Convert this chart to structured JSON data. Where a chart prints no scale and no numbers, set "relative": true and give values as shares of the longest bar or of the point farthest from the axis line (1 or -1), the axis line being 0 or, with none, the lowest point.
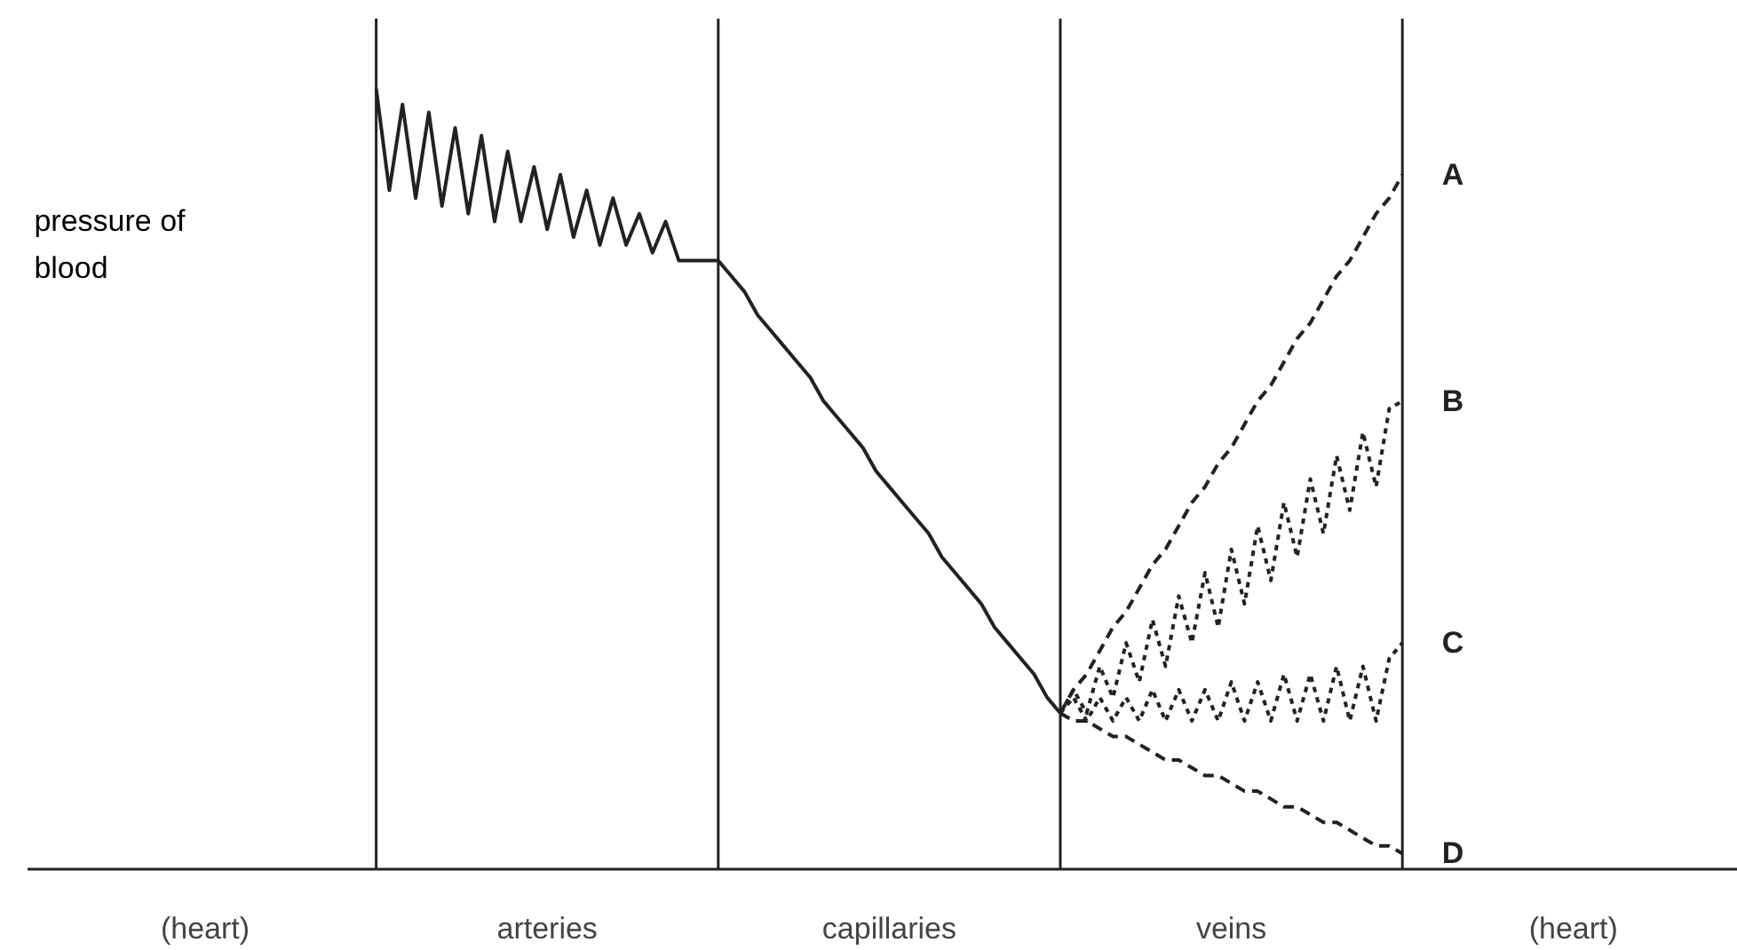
{
  "chart_data": {
    "type": "line",
    "relative": true,
    "ylabel": "pressure of blood",
    "categories": [
      null,
      null,
      null,
      null,
      null,
      null,
      null,
      null,
      null,
      null,
      null,
      null,
      null,
      "(heart)",
      null,
      null,
      null,
      null,
      null,
      null,
      null,
      null,
      null,
      null,
      null,
      null,
      null,
      null,
      null,
      null,
      null,
      null,
      null,
      null,
      null,
      null,
      null,
      null,
      null,
      "arteries",
      null,
      null,
      null,
      null,
      null,
      null,
      null,
      null,
      null,
      null,
      null,
      null,
      null,
      null,
      null,
      null,
      null,
      null,
      null,
      null,
      null,
      null,
      null,
      null,
      null,
      "capillaries",
      null,
      null,
      null,
      null,
      null,
      null,
      null,
      null,
      null,
      null,
      null,
      null,
      null,
      null,
      null,
      null,
      null,
      null,
      null,
      null,
      null,
      null,
      null,
      null,
      null,
      "veins",
      null,
      null,
      null,
      null,
      null,
      null,
      null,
      null,
      null,
      null,
      null,
      null,
      null,
      null,
      null,
      null,
      null,
      null,
      null,
      null,
      null,
      null,
      null,
      null,
      null,
      "(heart)",
      null,
      null,
      null,
      null,
      null,
      null,
      null,
      null,
      null,
      null,
      null,
      null
    ],
    "grid": "x",
    "marker": "none",
    "series": [
      {
        "color": "#222222",
        "line_style": "solid",
        "values": [
          null,
          null,
          null,
          null,
          null,
          null,
          null,
          null,
          null,
          null,
          null,
          null,
          null,
          null,
          null,
          null,
          null,
          null,
          null,
          null,
          null,
          null,
          null,
          null,
          null,
          null,
          1.0,
          0.87,
          0.98,
          0.86,
          0.97,
          0.85,
          0.95,
          0.84,
          0.94,
          0.83,
          0.92,
          0.83,
          0.9,
          0.82,
          0.89,
          0.81,
          0.87,
          0.8,
          0.86,
          0.8,
          0.84,
          0.79,
          0.83,
          0.78,
          0.78,
          0.78,
          0.78,
          null,
          null,
          null,
          null,
          null,
          null,
          null,
          null,
          null,
          null,
          null,
          null,
          null,
          null,
          null,
          null,
          null,
          null,
          null,
          null,
          null,
          null,
          null,
          null,
          null,
          null,
          null,
          null,
          null,
          null,
          null,
          null,
          null,
          null,
          null,
          null,
          null,
          null,
          null,
          null,
          null,
          null,
          null,
          null,
          null,
          null,
          null,
          null,
          null,
          null,
          null,
          null,
          null,
          null,
          null,
          null,
          null,
          null,
          null,
          null,
          null,
          null,
          null,
          null,
          null,
          null,
          null,
          null,
          null,
          null,
          null,
          null,
          null,
          null,
          null,
          null,
          null
        ]
      },
      {
        "color": "#222222",
        "line_style": "solid",
        "values": [
          null,
          null,
          null,
          null,
          null,
          null,
          null,
          null,
          null,
          null,
          null,
          null,
          null,
          null,
          null,
          null,
          null,
          null,
          null,
          null,
          null,
          null,
          null,
          null,
          null,
          null,
          null,
          null,
          null,
          null,
          null,
          null,
          null,
          null,
          null,
          null,
          null,
          null,
          null,
          null,
          null,
          null,
          null,
          null,
          null,
          null,
          null,
          null,
          null,
          null,
          null,
          null,
          0.78,
          0.76,
          0.74,
          0.71,
          0.69,
          0.67,
          0.65,
          0.63,
          0.6,
          0.58,
          0.56,
          0.54,
          0.51,
          0.49,
          0.47,
          0.45,
          0.43,
          0.4,
          0.38,
          0.36,
          0.34,
          0.31,
          0.29,
          0.27,
          0.25,
          0.22,
          0.2,
          null,
          null,
          null,
          null,
          null,
          null,
          null,
          null,
          null,
          null,
          null,
          null,
          null,
          null,
          null,
          null,
          null,
          null,
          null,
          null,
          null,
          null,
          null,
          null,
          null,
          null,
          null,
          null,
          null,
          null,
          null,
          null,
          null,
          null,
          null,
          null,
          null,
          null,
          null,
          null,
          null,
          null,
          null,
          null,
          null,
          null,
          null,
          null,
          null,
          null,
          null
        ]
      },
      {
        "name": "A",
        "color": "#222222",
        "line_style": "dashed",
        "values": [
          null,
          null,
          null,
          null,
          null,
          null,
          null,
          null,
          null,
          null,
          null,
          null,
          null,
          null,
          null,
          null,
          null,
          null,
          null,
          null,
          null,
          null,
          null,
          null,
          null,
          null,
          null,
          null,
          null,
          null,
          null,
          null,
          null,
          null,
          null,
          null,
          null,
          null,
          null,
          null,
          null,
          null,
          null,
          null,
          null,
          null,
          null,
          null,
          null,
          null,
          null,
          null,
          null,
          null,
          null,
          null,
          null,
          null,
          null,
          null,
          null,
          null,
          null,
          null,
          null,
          null,
          null,
          null,
          null,
          null,
          null,
          null,
          null,
          null,
          null,
          null,
          null,
          null,
          0.2,
          0.23,
          0.25,
          0.28,
          0.31,
          0.33,
          0.36,
          0.39,
          0.41,
          0.44,
          0.47,
          0.49,
          0.52,
          0.54,
          0.57,
          0.6,
          0.62,
          0.65,
          0.68,
          0.7,
          0.73,
          0.76,
          0.78,
          0.81,
          0.84,
          0.86,
          0.89,
          null,
          null,
          null,
          null,
          null,
          null,
          null,
          null,
          null,
          null,
          null,
          null,
          null,
          null,
          null,
          null,
          null,
          null,
          null,
          null,
          null,
          null,
          null,
          null,
          null
        ]
      },
      {
        "name": "B",
        "color": "#222222",
        "line_style": "dotted",
        "values": [
          null,
          null,
          null,
          null,
          null,
          null,
          null,
          null,
          null,
          null,
          null,
          null,
          null,
          null,
          null,
          null,
          null,
          null,
          null,
          null,
          null,
          null,
          null,
          null,
          null,
          null,
          null,
          null,
          null,
          null,
          null,
          null,
          null,
          null,
          null,
          null,
          null,
          null,
          null,
          null,
          null,
          null,
          null,
          null,
          null,
          null,
          null,
          null,
          null,
          null,
          null,
          null,
          null,
          null,
          null,
          null,
          null,
          null,
          null,
          null,
          null,
          null,
          null,
          null,
          null,
          null,
          null,
          null,
          null,
          null,
          null,
          null,
          null,
          null,
          null,
          null,
          null,
          null,
          0.2,
          0.23,
          0.2,
          0.26,
          0.22,
          0.29,
          0.24,
          0.32,
          0.26,
          0.35,
          0.29,
          0.38,
          0.31,
          0.41,
          0.34,
          0.44,
          0.37,
          0.47,
          0.4,
          0.5,
          0.43,
          0.53,
          0.46,
          0.56,
          0.49,
          0.59,
          0.6,
          null,
          null,
          null,
          null,
          null,
          null,
          null,
          null,
          null,
          null,
          null,
          null,
          null,
          null,
          null,
          null,
          null,
          null,
          null,
          null,
          null,
          null,
          null,
          null,
          null
        ]
      },
      {
        "name": "C",
        "color": "#222222",
        "line_style": "dotted",
        "values": [
          null,
          null,
          null,
          null,
          null,
          null,
          null,
          null,
          null,
          null,
          null,
          null,
          null,
          null,
          null,
          null,
          null,
          null,
          null,
          null,
          null,
          null,
          null,
          null,
          null,
          null,
          null,
          null,
          null,
          null,
          null,
          null,
          null,
          null,
          null,
          null,
          null,
          null,
          null,
          null,
          null,
          null,
          null,
          null,
          null,
          null,
          null,
          null,
          null,
          null,
          null,
          null,
          null,
          null,
          null,
          null,
          null,
          null,
          null,
          null,
          null,
          null,
          null,
          null,
          null,
          null,
          null,
          null,
          null,
          null,
          null,
          null,
          null,
          null,
          null,
          null,
          null,
          null,
          0.2,
          0.22,
          0.19,
          0.22,
          0.19,
          0.22,
          0.19,
          0.23,
          0.19,
          0.23,
          0.19,
          0.23,
          0.19,
          0.24,
          0.19,
          0.24,
          0.19,
          0.25,
          0.19,
          0.25,
          0.19,
          0.26,
          0.19,
          0.26,
          0.19,
          0.27,
          0.29,
          null,
          null,
          null,
          null,
          null,
          null,
          null,
          null,
          null,
          null,
          null,
          null,
          null,
          null,
          null,
          null,
          null,
          null,
          null,
          null,
          null,
          null,
          null,
          null,
          null
        ]
      },
      {
        "name": "D",
        "color": "#222222",
        "line_style": "dashed",
        "values": [
          null,
          null,
          null,
          null,
          null,
          null,
          null,
          null,
          null,
          null,
          null,
          null,
          null,
          null,
          null,
          null,
          null,
          null,
          null,
          null,
          null,
          null,
          null,
          null,
          null,
          null,
          null,
          null,
          null,
          null,
          null,
          null,
          null,
          null,
          null,
          null,
          null,
          null,
          null,
          null,
          null,
          null,
          null,
          null,
          null,
          null,
          null,
          null,
          null,
          null,
          null,
          null,
          null,
          null,
          null,
          null,
          null,
          null,
          null,
          null,
          null,
          null,
          null,
          null,
          null,
          null,
          null,
          null,
          null,
          null,
          null,
          null,
          null,
          null,
          null,
          null,
          null,
          null,
          0.2,
          0.19,
          0.19,
          0.18,
          0.17,
          0.17,
          0.16,
          0.15,
          0.14,
          0.14,
          0.13,
          0.12,
          0.12,
          0.11,
          0.1,
          0.1,
          0.09,
          0.08,
          0.08,
          0.07,
          0.06,
          0.06,
          0.05,
          0.04,
          0.03,
          0.03,
          0.02,
          null,
          null,
          null,
          null,
          null,
          null,
          null,
          null,
          null,
          null,
          null,
          null,
          null,
          null,
          null,
          null,
          null,
          null,
          null,
          null,
          null,
          null,
          null,
          null,
          null
        ]
      }
    ]
  }
}
